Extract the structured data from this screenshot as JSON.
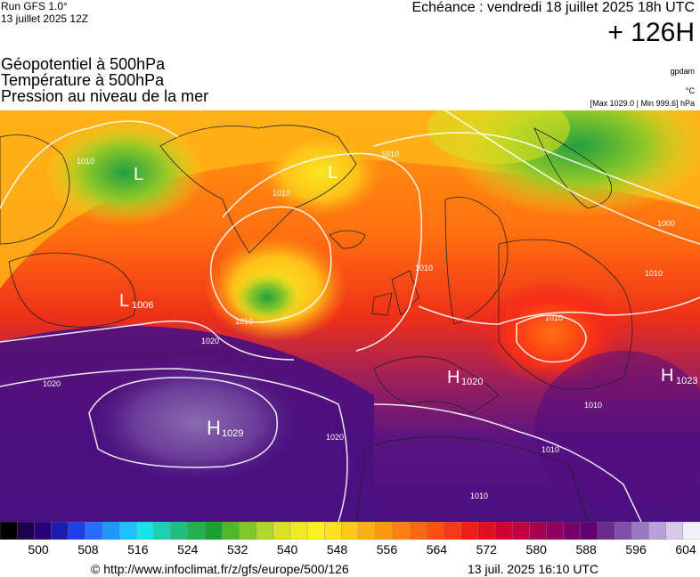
{
  "header": {
    "run_model": "Run GFS 1.0°",
    "run_date": "13 juillet 2025 12Z",
    "echeance": "Echéance : vendredi 18 juillet 2025 18h UTC",
    "lead_time": "+ 126H"
  },
  "parameters": [
    "Géopotentiel à 500hPa",
    "Température à 500hPa",
    "Pression au niveau de la mer"
  ],
  "units": {
    "geopot": "gpdam",
    "temp": "°C",
    "pressure_range": "[Max 1029.0 | Min 999.6] hPa"
  },
  "map": {
    "pressure_centers": [
      {
        "type": "H",
        "value": "1029"
      },
      {
        "type": "H",
        "value": "1020"
      },
      {
        "type": "H",
        "value": "1023"
      },
      {
        "type": "L",
        "value": "1006"
      },
      {
        "type": "L",
        "value": ""
      },
      {
        "type": "L",
        "value": ""
      }
    ],
    "isobar_labels": [
      "1010",
      "1010",
      "1010",
      "1020",
      "1020",
      "1020",
      "1010",
      "1010",
      "1010",
      "1010",
      "1000",
      "1010",
      "1010",
      "1010"
    ]
  },
  "legend": {
    "ticks": [
      "500",
      "508",
      "516",
      "524",
      "532",
      "540",
      "548",
      "556",
      "564",
      "572",
      "580",
      "588",
      "596",
      "604"
    ],
    "colors": [
      "#000000",
      "#1a004d",
      "#2a007a",
      "#1d1ab0",
      "#1e3fe6",
      "#2a6cff",
      "#1e98ff",
      "#1ec0ff",
      "#1ee0e8",
      "#1ed0b0",
      "#1ec080",
      "#22b050",
      "#1aa030",
      "#50b828",
      "#80c828",
      "#b0d828",
      "#d8e028",
      "#f0e828",
      "#fff020",
      "#ffe020",
      "#ffc818",
      "#ffb010",
      "#ff9810",
      "#ff8010",
      "#ff6810",
      "#ff5010",
      "#f83818",
      "#f02018",
      "#e01020",
      "#d00030",
      "#c00040",
      "#a80050",
      "#900060",
      "#78006a",
      "#600070",
      "#6a2a8c",
      "#8050a8",
      "#9878c0",
      "#b8a0d8",
      "#d8c8ea",
      "#f0f0f8"
    ]
  },
  "footer": {
    "url": "© http://www.infoclimat.fr/z/gfs/europe/500/126",
    "timestamp": "13 juil. 2025 16:10 UTC"
  }
}
